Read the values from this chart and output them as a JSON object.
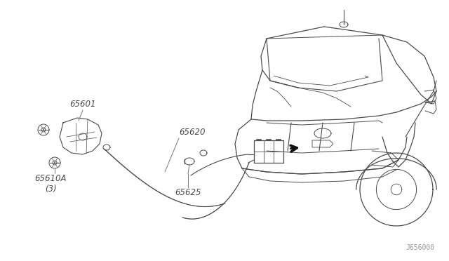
{
  "background_color": "#ffffff",
  "line_color": "#4a4a4a",
  "text_color": "#4a4a4a",
  "diagram_id": "J656000",
  "fig_width": 6.4,
  "fig_height": 3.72,
  "dpi": 100,
  "label_65601": "65601",
  "label_65610A": "65610A\n(3)",
  "label_65620": "65620",
  "label_65625": "65625"
}
